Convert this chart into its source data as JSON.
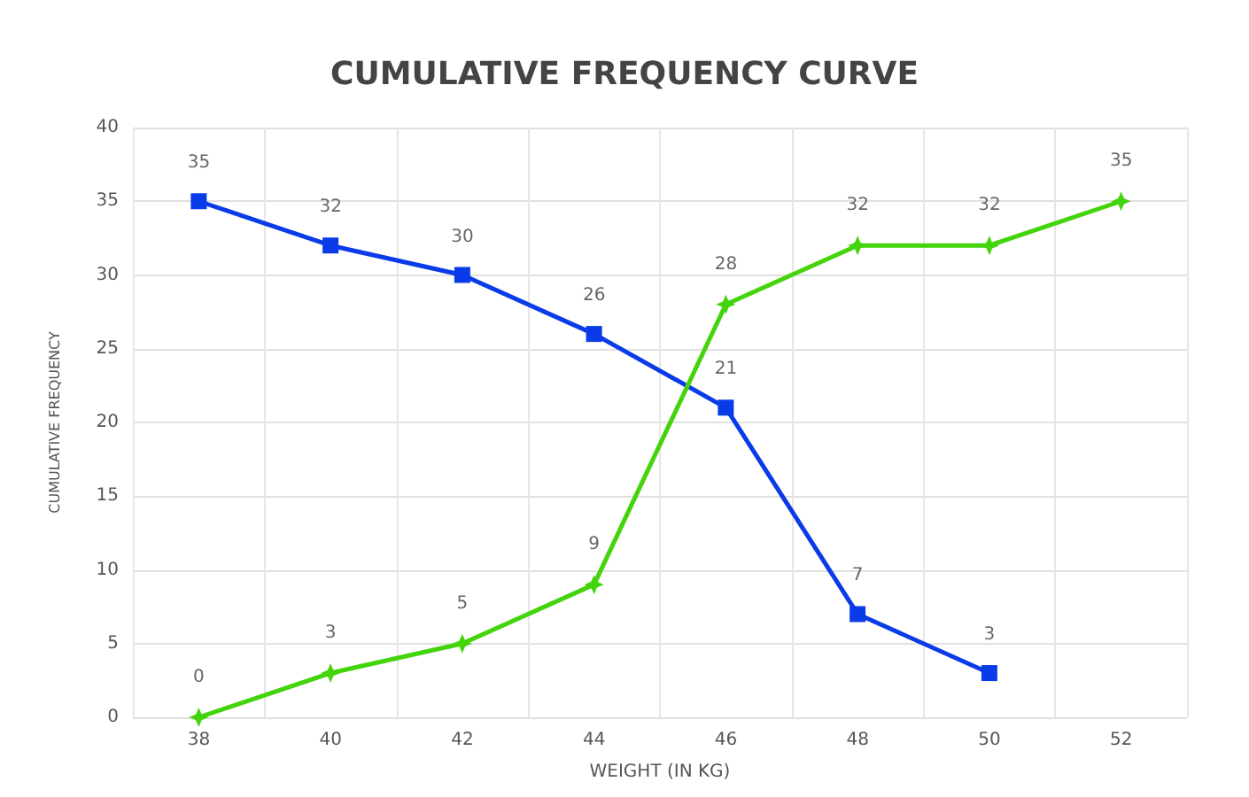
{
  "chart_data": {
    "type": "line",
    "title": "CUMULATIVE FREQUENCY CURVE",
    "xlabel": "WEIGHT (IN KG)",
    "ylabel": "CUMULATIVE FREQUENCY",
    "categories": [
      "38",
      "40",
      "42",
      "44",
      "46",
      "48",
      "50",
      "52"
    ],
    "series": [
      {
        "color": "#0a3be8",
        "marker": "square",
        "values": [
          35,
          32,
          30,
          26,
          21,
          7,
          3,
          null
        ]
      },
      {
        "color": "#44d40c",
        "marker": "star",
        "values": [
          0,
          3,
          5,
          9,
          28,
          32,
          32,
          35
        ]
      }
    ],
    "ylim": [
      0,
      40
    ],
    "yticks": [
      0,
      5,
      10,
      15,
      20,
      25,
      30,
      35,
      40
    ],
    "grid": true,
    "data_labels": true,
    "line_style": "solid"
  }
}
